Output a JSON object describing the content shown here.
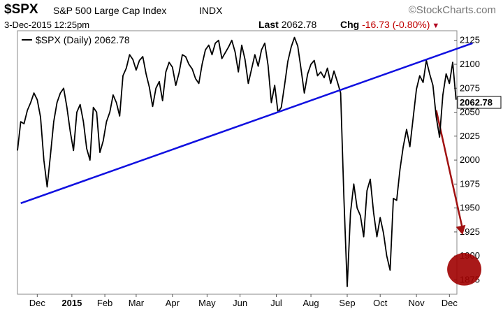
{
  "header": {
    "symbol": "$SPX",
    "name": "S&P 500 Large Cap Index",
    "exchange": "INDX",
    "brand": "©StockCharts.com",
    "date": "3-Dec-2015 12:25pm",
    "last_label": "Last",
    "last_value": "2062.78",
    "chg_label": "Chg",
    "chg_value": "-16.73 (-0.80%)",
    "chg_arrow": "▼"
  },
  "colors": {
    "price": "#000000",
    "trendline": "#1010e0",
    "arrow": "#a01010",
    "circle": "#a00000",
    "down": "#c00000"
  },
  "chart_data": {
    "type": "line",
    "title": "$SPX S&P 500 Large Cap Index INDX",
    "legend": "$SPX (Daily) 2062.78",
    "last_label": "2062.78",
    "ylim": [
      1860,
      2135
    ],
    "yticks": [
      1875,
      1900,
      1925,
      1950,
      1975,
      2000,
      2025,
      2050,
      2075,
      2100,
      2125
    ],
    "xlim": [
      0,
      260
    ],
    "xticks": [
      {
        "t": 12,
        "label": "Dec"
      },
      {
        "t": 33,
        "label": "2015"
      },
      {
        "t": 53,
        "label": "Feb"
      },
      {
        "t": 72,
        "label": "Mar"
      },
      {
        "t": 94,
        "label": "Apr"
      },
      {
        "t": 115,
        "label": "May"
      },
      {
        "t": 135,
        "label": "Jun"
      },
      {
        "t": 157,
        "label": "Jul"
      },
      {
        "t": 178,
        "label": "Aug"
      },
      {
        "t": 200,
        "label": "Sep"
      },
      {
        "t": 220,
        "label": "Oct"
      },
      {
        "t": 242,
        "label": "Nov"
      },
      {
        "t": 262,
        "label": "Dec"
      }
    ],
    "series": [
      {
        "name": "$SPX (Daily)",
        "points": [
          [
            0,
            2010
          ],
          [
            2,
            2040
          ],
          [
            4,
            2038
          ],
          [
            6,
            2052
          ],
          [
            8,
            2060
          ],
          [
            10,
            2070
          ],
          [
            12,
            2063
          ],
          [
            14,
            2045
          ],
          [
            16,
            2000
          ],
          [
            18,
            1972
          ],
          [
            20,
            2005
          ],
          [
            22,
            2040
          ],
          [
            24,
            2060
          ],
          [
            26,
            2070
          ],
          [
            28,
            2075
          ],
          [
            30,
            2055
          ],
          [
            32,
            2030
          ],
          [
            34,
            2010
          ],
          [
            36,
            2050
          ],
          [
            38,
            2058
          ],
          [
            40,
            2040
          ],
          [
            42,
            2012
          ],
          [
            44,
            2000
          ],
          [
            46,
            2055
          ],
          [
            48,
            2050
          ],
          [
            50,
            2008
          ],
          [
            52,
            2020
          ],
          [
            54,
            2040
          ],
          [
            56,
            2050
          ],
          [
            58,
            2068
          ],
          [
            60,
            2060
          ],
          [
            62,
            2046
          ],
          [
            64,
            2088
          ],
          [
            66,
            2096
          ],
          [
            68,
            2110
          ],
          [
            70,
            2105
          ],
          [
            72,
            2094
          ],
          [
            74,
            2104
          ],
          [
            76,
            2108
          ],
          [
            78,
            2090
          ],
          [
            80,
            2076
          ],
          [
            82,
            2056
          ],
          [
            84,
            2075
          ],
          [
            86,
            2082
          ],
          [
            88,
            2062
          ],
          [
            90,
            2092
          ],
          [
            92,
            2102
          ],
          [
            94,
            2097
          ],
          [
            96,
            2078
          ],
          [
            98,
            2091
          ],
          [
            100,
            2110
          ],
          [
            102,
            2108
          ],
          [
            104,
            2100
          ],
          [
            106,
            2095
          ],
          [
            108,
            2085
          ],
          [
            110,
            2080
          ],
          [
            112,
            2100
          ],
          [
            114,
            2115
          ],
          [
            116,
            2120
          ],
          [
            118,
            2110
          ],
          [
            120,
            2122
          ],
          [
            122,
            2125
          ],
          [
            124,
            2106
          ],
          [
            126,
            2112
          ],
          [
            128,
            2118
          ],
          [
            130,
            2125
          ],
          [
            132,
            2113
          ],
          [
            134,
            2092
          ],
          [
            136,
            2120
          ],
          [
            138,
            2105
          ],
          [
            140,
            2080
          ],
          [
            142,
            2095
          ],
          [
            144,
            2110
          ],
          [
            146,
            2098
          ],
          [
            148,
            2115
          ],
          [
            150,
            2122
          ],
          [
            152,
            2099
          ],
          [
            154,
            2060
          ],
          [
            156,
            2078
          ],
          [
            158,
            2050
          ],
          [
            160,
            2055
          ],
          [
            162,
            2078
          ],
          [
            164,
            2103
          ],
          [
            166,
            2118
          ],
          [
            168,
            2128
          ],
          [
            170,
            2119
          ],
          [
            172,
            2095
          ],
          [
            174,
            2070
          ],
          [
            176,
            2090
          ],
          [
            178,
            2100
          ],
          [
            180,
            2104
          ],
          [
            182,
            2088
          ],
          [
            184,
            2092
          ],
          [
            186,
            2086
          ],
          [
            188,
            2096
          ],
          [
            190,
            2080
          ],
          [
            192,
            2093
          ],
          [
            194,
            2082
          ],
          [
            196,
            2070
          ],
          [
            198,
            1960
          ],
          [
            200,
            1868
          ],
          [
            202,
            1945
          ],
          [
            204,
            1975
          ],
          [
            206,
            1950
          ],
          [
            208,
            1942
          ],
          [
            210,
            1920
          ],
          [
            212,
            1968
          ],
          [
            214,
            1980
          ],
          [
            216,
            1945
          ],
          [
            218,
            1920
          ],
          [
            220,
            1940
          ],
          [
            222,
            1924
          ],
          [
            224,
            1900
          ],
          [
            226,
            1885
          ],
          [
            228,
            1960
          ],
          [
            230,
            1958
          ],
          [
            232,
            1990
          ],
          [
            234,
            2014
          ],
          [
            236,
            2032
          ],
          [
            238,
            2014
          ],
          [
            240,
            2044
          ],
          [
            242,
            2074
          ],
          [
            244,
            2088
          ],
          [
            246,
            2081
          ],
          [
            248,
            2104
          ],
          [
            250,
            2090
          ],
          [
            252,
            2078
          ],
          [
            254,
            2045
          ],
          [
            256,
            2024
          ],
          [
            258,
            2068
          ],
          [
            260,
            2090
          ],
          [
            262,
            2080
          ],
          [
            264,
            2102
          ],
          [
            266,
            2063
          ]
        ]
      },
      {
        "name": "trendline",
        "points": [
          [
            2,
            1955
          ],
          [
            276,
            2122
          ]
        ]
      }
    ],
    "annotations": [
      {
        "type": "arrow",
        "from": [
          254,
          2052
        ],
        "to": [
          270,
          1922
        ]
      },
      {
        "type": "circle",
        "center": [
          271,
          1886
        ],
        "radius_y": 17
      }
    ]
  }
}
